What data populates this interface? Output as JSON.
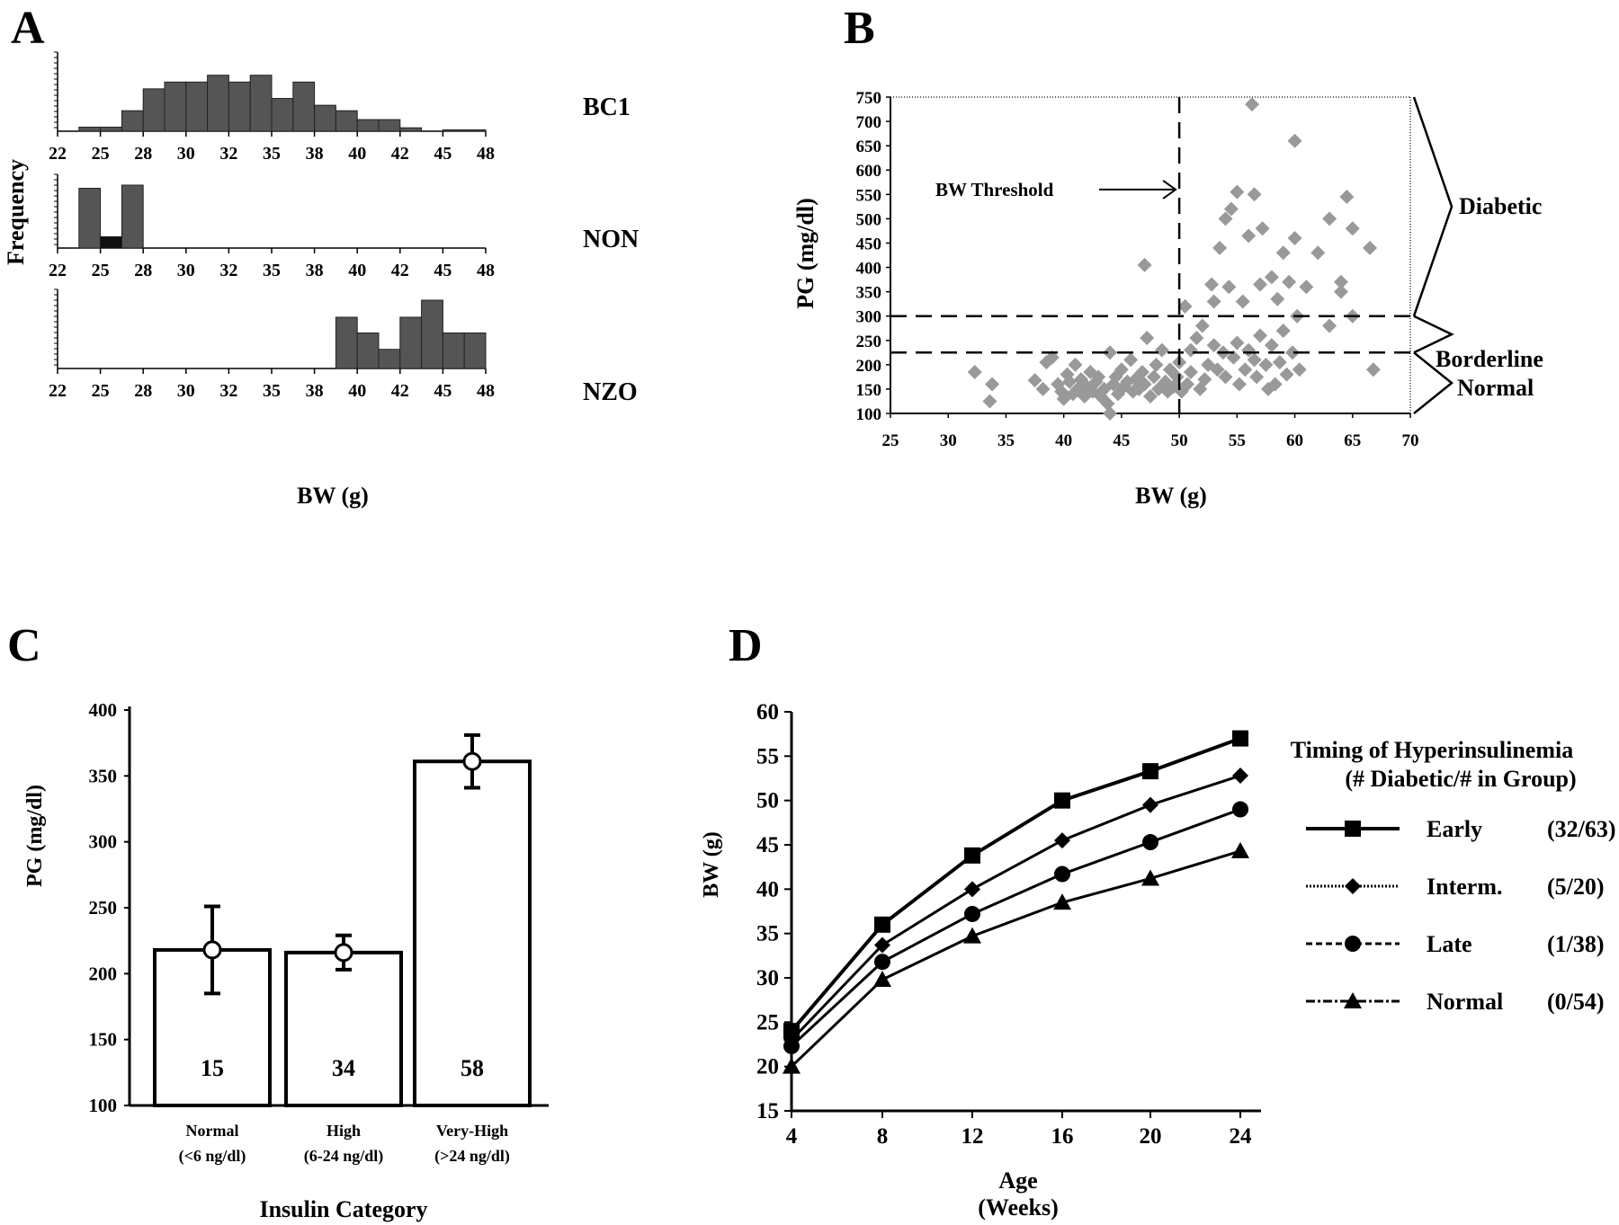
{
  "colors": {
    "bar_gray": "#555555",
    "bar_dark": "#111111",
    "point_gray": "#999999",
    "axis": "#000000"
  },
  "chart_data": [
    {
      "panel_letter": "A",
      "type": "bar",
      "xlabel": "BW (g)",
      "ylabel": "Frequency",
      "tick_labels": [
        "22",
        "25",
        "28",
        "30",
        "32",
        "35",
        "38",
        "40",
        "42",
        "45",
        "48"
      ],
      "bin_count": 20,
      "panels": [
        {
          "name": "BC1",
          "bar_heights": [
            0,
            0.06,
            0.06,
            0.3,
            0.62,
            0.72,
            0.72,
            0.82,
            0.72,
            0.82,
            0.48,
            0.72,
            0.38,
            0.3,
            0.17,
            0.17,
            0.05,
            0,
            0.02,
            0.02
          ]
        },
        {
          "name": "NON",
          "bar_heights": [
            0,
            0.95,
            0.18,
            1.0,
            0,
            0,
            0,
            0,
            0,
            0,
            0,
            0,
            0,
            0,
            0,
            0,
            0,
            0,
            0,
            0
          ],
          "inner_dark_bin": 2,
          "inner_dark_height": 0.18
        },
        {
          "name": "NZO",
          "bar_heights": [
            0,
            0,
            0,
            0,
            0,
            0,
            0,
            0,
            0,
            0,
            0,
            0,
            0,
            0.75,
            0.52,
            0.28,
            0.75,
            1.0,
            0.52,
            0.52
          ]
        }
      ]
    },
    {
      "panel_letter": "B",
      "type": "scatter",
      "xlabel": "BW (g)",
      "ylabel": "PG (mg/dl)",
      "xlim": [
        25,
        70
      ],
      "ylim": [
        100,
        750
      ],
      "x_ticks": [
        25,
        30,
        35,
        40,
        45,
        50,
        55,
        60,
        65,
        70
      ],
      "y_ticks": [
        100,
        150,
        200,
        250,
        300,
        350,
        400,
        450,
        500,
        550,
        600,
        650,
        700,
        750
      ],
      "threshold_x": 50,
      "threshold_label": "BW Threshold",
      "h_lines": [
        300,
        225
      ],
      "regions": [
        {
          "label": "Diabetic",
          "from": 300,
          "to": 750
        },
        {
          "label": "Borderline",
          "from": 225,
          "to": 300
        },
        {
          "label": "Normal",
          "from": 100,
          "to": 225
        }
      ],
      "points": [
        [
          32.3,
          185
        ],
        [
          33.8,
          160
        ],
        [
          33.6,
          125
        ],
        [
          37.5,
          168
        ],
        [
          38.2,
          150
        ],
        [
          38.5,
          205
        ],
        [
          39,
          215
        ],
        [
          39.5,
          160
        ],
        [
          39.8,
          145
        ],
        [
          40,
          130
        ],
        [
          40.3,
          180
        ],
        [
          40.5,
          165
        ],
        [
          40.8,
          140
        ],
        [
          41,
          200
        ],
        [
          41.2,
          150
        ],
        [
          41.5,
          170
        ],
        [
          41.8,
          135
        ],
        [
          42,
          155
        ],
        [
          42.3,
          185
        ],
        [
          42.5,
          145
        ],
        [
          42.8,
          165
        ],
        [
          43,
          175
        ],
        [
          43.2,
          135
        ],
        [
          43.5,
          150
        ],
        [
          43.8,
          120
        ],
        [
          44,
          100
        ],
        [
          44,
          225
        ],
        [
          44.3,
          160
        ],
        [
          44.5,
          175
        ],
        [
          44.7,
          140
        ],
        [
          45,
          190
        ],
        [
          45.2,
          155
        ],
        [
          45.5,
          165
        ],
        [
          45.8,
          210
        ],
        [
          46,
          145
        ],
        [
          46.2,
          170
        ],
        [
          46.5,
          150
        ],
        [
          46.8,
          185
        ],
        [
          47,
          405
        ],
        [
          47,
          160
        ],
        [
          47.2,
          255
        ],
        [
          47.5,
          135
        ],
        [
          47.8,
          175
        ],
        [
          48,
          200
        ],
        [
          48.2,
          150
        ],
        [
          48.5,
          230
        ],
        [
          48.8,
          165
        ],
        [
          49,
          145
        ],
        [
          49.2,
          190
        ],
        [
          49.5,
          155
        ],
        [
          49.8,
          175
        ],
        [
          50,
          205
        ],
        [
          50.2,
          145
        ],
        [
          50.5,
          320
        ],
        [
          50.7,
          160
        ],
        [
          51,
          185
        ],
        [
          51,
          230
        ],
        [
          51.5,
          255
        ],
        [
          51.8,
          150
        ],
        [
          52,
          280
        ],
        [
          52.2,
          170
        ],
        [
          52.5,
          200
        ],
        [
          52.8,
          365
        ],
        [
          53,
          240
        ],
        [
          53,
          330
        ],
        [
          53.3,
          190
        ],
        [
          53.5,
          440
        ],
        [
          53.8,
          225
        ],
        [
          54,
          175
        ],
        [
          54,
          500
        ],
        [
          54.3,
          360
        ],
        [
          54.5,
          520
        ],
        [
          54.7,
          215
        ],
        [
          55,
          555
        ],
        [
          55,
          245
        ],
        [
          55.2,
          160
        ],
        [
          55.5,
          330
        ],
        [
          55.7,
          190
        ],
        [
          56,
          465
        ],
        [
          56,
          230
        ],
        [
          56.3,
          735
        ],
        [
          56.5,
          550
        ],
        [
          56.5,
          210
        ],
        [
          56.7,
          175
        ],
        [
          57,
          365
        ],
        [
          57,
          260
        ],
        [
          57.2,
          480
        ],
        [
          57.5,
          200
        ],
        [
          57.7,
          150
        ],
        [
          58,
          380
        ],
        [
          58,
          240
        ],
        [
          58.3,
          160
        ],
        [
          58.5,
          335
        ],
        [
          58.7,
          205
        ],
        [
          59,
          430
        ],
        [
          59,
          270
        ],
        [
          59.3,
          180
        ],
        [
          59.5,
          370
        ],
        [
          59.8,
          225
        ],
        [
          60,
          660
        ],
        [
          60,
          460
        ],
        [
          60.2,
          300
        ],
        [
          60.4,
          190
        ],
        [
          61,
          360
        ],
        [
          62,
          430
        ],
        [
          63,
          500
        ],
        [
          63,
          280
        ],
        [
          64,
          370
        ],
        [
          64,
          350
        ],
        [
          64.5,
          545
        ],
        [
          65,
          480
        ],
        [
          65,
          300
        ],
        [
          66.5,
          440
        ],
        [
          66.8,
          190
        ]
      ]
    },
    {
      "panel_letter": "C",
      "type": "bar",
      "xlabel": "Insulin Category",
      "ylabel": "PG (mg/dl)",
      "ylim": [
        100,
        400
      ],
      "y_ticks": [
        100,
        150,
        200,
        250,
        300,
        350,
        400
      ],
      "categories": [
        {
          "name": "Normal",
          "sub": "(<6 ng/dl)"
        },
        {
          "name": "High",
          "sub": "(6-24 ng/dl)"
        },
        {
          "name": "Very-High",
          "sub": "(>24 ng/dl)"
        }
      ],
      "values": [
        218,
        216,
        361
      ],
      "errors": [
        33,
        13,
        20
      ],
      "n_labels": [
        "15",
        "34",
        "58"
      ]
    },
    {
      "panel_letter": "D",
      "type": "line",
      "xlabel": "Age",
      "xlabel_sub": "(Weeks)",
      "ylabel": "BW (g)",
      "ylim": [
        15,
        60
      ],
      "y_ticks": [
        15,
        20,
        25,
        30,
        35,
        40,
        45,
        50,
        55,
        60
      ],
      "x": [
        4,
        8,
        12,
        16,
        20,
        24
      ],
      "legend_title": "Timing of Hyperinsulinemia",
      "legend_subtitle": "(# Diabetic/# in Group)",
      "series": [
        {
          "name": "Early",
          "count": "(32/63)",
          "marker": "square",
          "line": "solid",
          "values": [
            24,
            36,
            43.8,
            50,
            53.3,
            57
          ]
        },
        {
          "name": "Interm.",
          "count": "(5/20)",
          "marker": "diamond",
          "line": "dotted",
          "values": [
            23,
            33.7,
            40,
            45.5,
            49.5,
            52.8
          ]
        },
        {
          "name": "Late",
          "count": "(1/38)",
          "marker": "circle",
          "line": "dashed",
          "values": [
            22.3,
            31.8,
            37.2,
            41.7,
            45.3,
            49
          ]
        },
        {
          "name": "Normal",
          "count": "(0/54)",
          "marker": "triangle",
          "line": "dashdot",
          "values": [
            20,
            29.8,
            34.7,
            38.5,
            41.2,
            44.3
          ]
        }
      ]
    }
  ]
}
